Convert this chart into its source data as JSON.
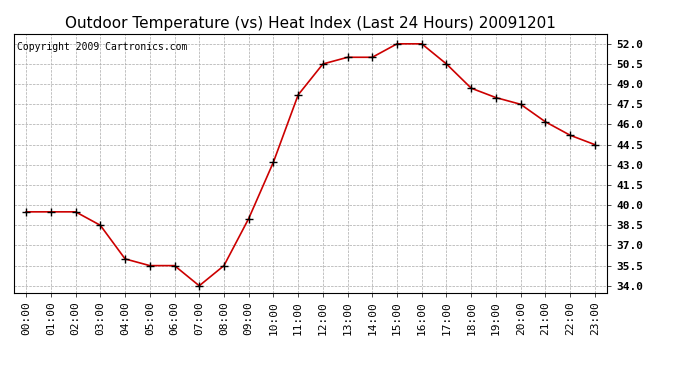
{
  "title": "Outdoor Temperature (vs) Heat Index (Last 24 Hours) 20091201",
  "copyright": "Copyright 2009 Cartronics.com",
  "x_labels": [
    "00:00",
    "01:00",
    "02:00",
    "03:00",
    "04:00",
    "05:00",
    "06:00",
    "07:00",
    "08:00",
    "09:00",
    "10:00",
    "11:00",
    "12:00",
    "13:00",
    "14:00",
    "15:00",
    "16:00",
    "17:00",
    "18:00",
    "19:00",
    "20:00",
    "21:00",
    "22:00",
    "23:00"
  ],
  "y_values": [
    39.5,
    39.5,
    39.5,
    38.5,
    36.0,
    35.5,
    35.5,
    34.0,
    35.5,
    39.0,
    43.2,
    48.2,
    50.5,
    51.0,
    51.0,
    52.0,
    52.0,
    50.5,
    48.7,
    48.0,
    47.5,
    46.2,
    45.2,
    44.5
  ],
  "line_color": "#cc0000",
  "marker": "+",
  "marker_size": 6,
  "marker_color": "#000000",
  "ylim": [
    33.5,
    52.75
  ],
  "ytick_values": [
    34.0,
    35.5,
    37.0,
    38.5,
    40.0,
    41.5,
    43.0,
    44.5,
    46.0,
    47.5,
    49.0,
    50.5,
    52.0
  ],
  "grid_color": "#aaaaaa",
  "bg_color": "#ffffff",
  "title_fontsize": 11,
  "copyright_fontsize": 7,
  "tick_fontsize": 8,
  "line_width": 1.2
}
